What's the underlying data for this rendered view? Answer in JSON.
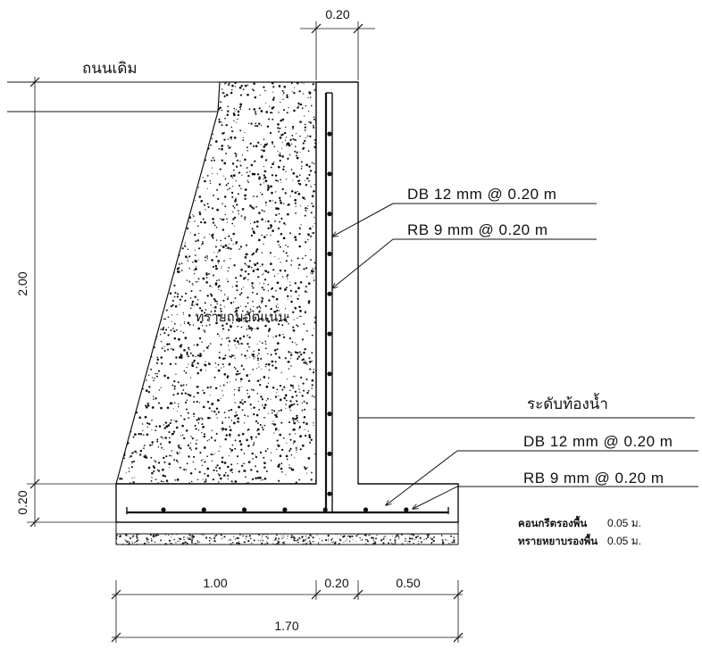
{
  "labels": {
    "road": "ถนนเดิม",
    "backfill": "ทรายถมอัดแน่น",
    "water_level": "ระดับท้องน้ำ",
    "stem_rebar_1": "DB 12 mm @ 0.20 m",
    "stem_rebar_2": "RB 9 mm @ 0.20 m",
    "base_rebar_1": "DB 12 mm @ 0.20 m",
    "base_rebar_2": "RB 9 mm @ 0.20 m",
    "lean_concrete": "คอนกรีตรองพื้น",
    "lean_concrete_thk": "0.05 ม.",
    "sand_bedding": "ทรายหยาบรองพื้น",
    "sand_bedding_thk": "0.05 ม."
  },
  "dimensions": {
    "top_wall": "0.20",
    "wall_height": "2.00",
    "base_height": "0.20",
    "heel": "1.00",
    "stem": "0.20",
    "toe": "0.50",
    "total_base": "1.70"
  },
  "colors": {
    "ink": "#111111",
    "background": "#ffffff"
  }
}
